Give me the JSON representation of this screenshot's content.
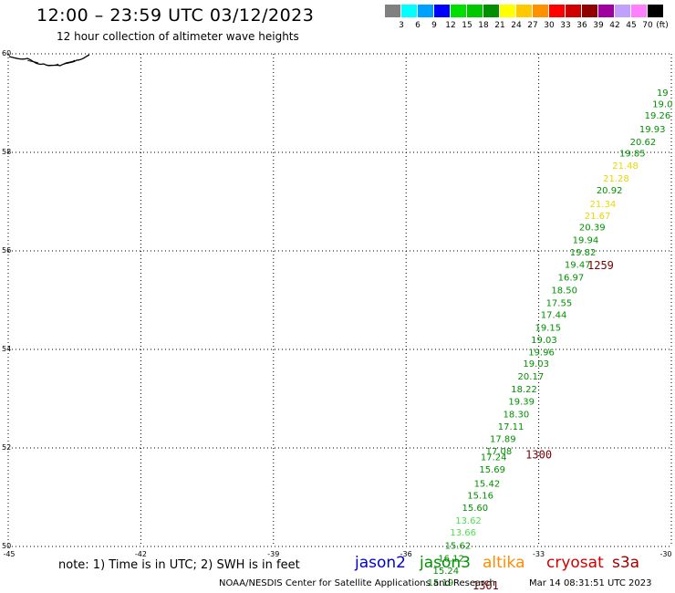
{
  "header": {
    "title": "12:00 – 23:59 UTC 03/12/2023",
    "subtitle": "12 hour collection of altimeter wave heights"
  },
  "colorbar": {
    "colors": [
      "#808080",
      "#00ffff",
      "#00a0ff",
      "#0000ff",
      "#00e000",
      "#00c800",
      "#009000",
      "#ffff00",
      "#ffc800",
      "#ff9000",
      "#ff0000",
      "#d00000",
      "#900000",
      "#a000a0",
      "#c0a0ff",
      "#ff80ff",
      "#000000"
    ],
    "labels": [
      "3",
      "6",
      "9",
      "12",
      "15",
      "18",
      "21",
      "24",
      "27",
      "30",
      "33",
      "36",
      "39",
      "42",
      "45",
      "70"
    ],
    "unit": "(ft)"
  },
  "chart_data": {
    "type": "scatter",
    "xlim": [
      -45,
      -30
    ],
    "ylim": [
      50,
      60
    ],
    "x_ticks": [
      -45,
      -42,
      -39,
      -36,
      -33,
      -30
    ],
    "y_ticks": [
      50,
      52,
      54,
      56,
      58,
      60
    ],
    "x_tick_labels": [
      "-45",
      "-42",
      "-39",
      "-36",
      "-33",
      "-30"
    ],
    "y_tick_labels": [
      "50",
      "52",
      "54",
      "56",
      "58",
      "60"
    ],
    "grid": true,
    "points": [
      {
        "lon": -30.2,
        "lat": 59.22,
        "value": "19",
        "color": "#009000"
      },
      {
        "lon": -30.2,
        "lat": 58.99,
        "value": "19.0",
        "color": "#009000"
      },
      {
        "lon": -30.31,
        "lat": 58.76,
        "value": "19.26",
        "color": "#009000"
      },
      {
        "lon": -30.43,
        "lat": 58.48,
        "value": "19.93",
        "color": "#009000"
      },
      {
        "lon": -30.64,
        "lat": 58.22,
        "value": "20.62",
        "color": "#009000"
      },
      {
        "lon": -30.88,
        "lat": 57.99,
        "value": "19.85",
        "color": "#009000"
      },
      {
        "lon": -31.04,
        "lat": 57.74,
        "value": "21.48",
        "color": "#e8d800"
      },
      {
        "lon": -31.25,
        "lat": 57.48,
        "value": "21.28",
        "color": "#e8d800"
      },
      {
        "lon": -31.4,
        "lat": 57.24,
        "value": "20.92",
        "color": "#009000"
      },
      {
        "lon": -31.55,
        "lat": 56.96,
        "value": "21.34",
        "color": "#e8d800"
      },
      {
        "lon": -31.67,
        "lat": 56.72,
        "value": "21.67",
        "color": "#e8d800"
      },
      {
        "lon": -31.79,
        "lat": 56.49,
        "value": "20.39",
        "color": "#009000"
      },
      {
        "lon": -31.94,
        "lat": 56.23,
        "value": "19.94",
        "color": "#009000"
      },
      {
        "lon": -32.0,
        "lat": 55.98,
        "value": "19.82",
        "color": "#009000"
      },
      {
        "lon": -32.12,
        "lat": 55.73,
        "value": "19.47",
        "color": "#009000"
      },
      {
        "lon": -32.27,
        "lat": 55.47,
        "value": "16.97",
        "color": "#009000"
      },
      {
        "lon": -32.42,
        "lat": 55.21,
        "value": "18.50",
        "color": "#009000"
      },
      {
        "lon": -32.54,
        "lat": 54.95,
        "value": "17.55",
        "color": "#009000"
      },
      {
        "lon": -32.66,
        "lat": 54.71,
        "value": "17.44",
        "color": "#009000"
      },
      {
        "lon": -32.79,
        "lat": 54.45,
        "value": "19.15",
        "color": "#009000"
      },
      {
        "lon": -32.88,
        "lat": 54.2,
        "value": "19.03",
        "color": "#009000"
      },
      {
        "lon": -32.94,
        "lat": 53.95,
        "value": "19.96",
        "color": "#009000"
      },
      {
        "lon": -33.06,
        "lat": 53.72,
        "value": "19.03",
        "color": "#009000"
      },
      {
        "lon": -33.18,
        "lat": 53.46,
        "value": "20.17",
        "color": "#009000"
      },
      {
        "lon": -33.33,
        "lat": 53.2,
        "value": "18.22",
        "color": "#009000"
      },
      {
        "lon": -33.39,
        "lat": 52.95,
        "value": "19.39",
        "color": "#009000"
      },
      {
        "lon": -33.51,
        "lat": 52.69,
        "value": "18.30",
        "color": "#009000"
      },
      {
        "lon": -33.63,
        "lat": 52.44,
        "value": "17.11",
        "color": "#009000"
      },
      {
        "lon": -33.81,
        "lat": 52.19,
        "value": "17.89",
        "color": "#009000"
      },
      {
        "lon": -33.9,
        "lat": 51.94,
        "value": "17.08",
        "color": "#009000"
      },
      {
        "lon": -34.02,
        "lat": 51.82,
        "value": "17.24",
        "color": "#009000"
      },
      {
        "lon": -34.05,
        "lat": 51.57,
        "value": "15.69",
        "color": "#009000"
      },
      {
        "lon": -34.17,
        "lat": 51.29,
        "value": "15.42",
        "color": "#009000"
      },
      {
        "lon": -34.32,
        "lat": 51.05,
        "value": "15.16",
        "color": "#009000"
      },
      {
        "lon": -34.44,
        "lat": 50.8,
        "value": "15.60",
        "color": "#009000"
      },
      {
        "lon": -34.59,
        "lat": 50.54,
        "value": "13.62",
        "color": "#50e050"
      },
      {
        "lon": -34.71,
        "lat": 50.3,
        "value": "13.66",
        "color": "#50e050"
      },
      {
        "lon": -34.83,
        "lat": 50.03,
        "value": "15.62",
        "color": "#009000"
      },
      {
        "lon": -34.98,
        "lat": 49.77,
        "value": "16.12",
        "color": "#009000"
      },
      {
        "lon": -35.1,
        "lat": 49.52,
        "value": "15.24",
        "color": "#009000"
      },
      {
        "lon": -35.22,
        "lat": 49.28,
        "value": "15.19",
        "color": "#009000"
      }
    ],
    "time_labels": [
      {
        "lon": -31.6,
        "lat": 55.7,
        "text": "1259"
      },
      {
        "lon": -33.0,
        "lat": 51.86,
        "text": "1300"
      },
      {
        "lon": -34.2,
        "lat": 49.2,
        "text": "1301"
      }
    ]
  },
  "legend": {
    "items": [
      {
        "name": "jason2",
        "color": "#0000d0"
      },
      {
        "name": "jason3",
        "color": "#009000"
      },
      {
        "name": "altika",
        "color": "#ff8c00"
      },
      {
        "name": "cryosat",
        "color": "#d00000"
      },
      {
        "name": "s3a",
        "color": "#a00000"
      }
    ]
  },
  "note": "note:  1) Time is in UTC;  2) SWH is in feet",
  "footer": {
    "credit": "NOAA/NESDIS Center for Satellite Applications and Research",
    "timestamp": "Mar 14 08:31:51 UTC 2023"
  }
}
